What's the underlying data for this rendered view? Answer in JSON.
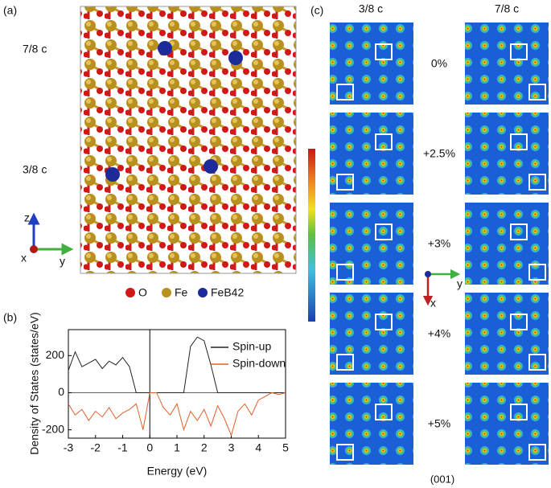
{
  "panel_a": {
    "label": "(a)",
    "layer_labels": [
      "7/8 c",
      "3/8 c"
    ],
    "axes": [
      "z",
      "x",
      "y"
    ],
    "legend": [
      "O",
      "Fe",
      "FeB42"
    ]
  },
  "chart_data": {
    "type": "line",
    "label": "(b)",
    "xlabel": "Energy (eV)",
    "ylabel": "Density of States (states/eV)",
    "x": [
      -3,
      -2.75,
      -2.5,
      -2.25,
      -2,
      -1.75,
      -1.5,
      -1.25,
      -1,
      -0.75,
      -0.5,
      -0.25,
      0,
      0.25,
      0.5,
      0.75,
      1,
      1.25,
      1.5,
      1.75,
      2,
      2.25,
      2.5,
      2.75,
      3,
      3.25,
      3.5,
      3.75,
      4,
      4.25,
      4.5,
      4.75,
      5
    ],
    "series": [
      {
        "name": "Spin-up",
        "color": "#222222",
        "values": [
          120,
          220,
          140,
          160,
          180,
          130,
          170,
          150,
          190,
          140,
          0,
          0,
          0,
          0,
          0,
          0,
          0,
          0,
          250,
          300,
          280,
          150,
          0,
          0,
          0,
          0,
          0,
          0,
          0,
          0,
          0,
          0,
          0
        ]
      },
      {
        "name": "Spin-down",
        "color": "#e0602a",
        "values": [
          -60,
          -120,
          -90,
          -150,
          -100,
          -130,
          -80,
          -140,
          -110,
          -90,
          -60,
          -200,
          0,
          0,
          -80,
          -120,
          -60,
          -200,
          -100,
          -150,
          -90,
          -180,
          -70,
          -140,
          -230,
          -100,
          -60,
          -120,
          -40,
          -20,
          0,
          -10,
          0
        ]
      }
    ],
    "xlim": [
      -3,
      5
    ],
    "ylim": [
      -245,
      340
    ],
    "xticks": [
      -3,
      -2,
      -1,
      0,
      1,
      2,
      3,
      4,
      5
    ],
    "yticks": [
      -200,
      0,
      200
    ],
    "vline": 0,
    "legend": "upper right"
  },
  "panel_c": {
    "label": "(c)",
    "columns": [
      "3/8 c",
      "7/8 c"
    ],
    "strains": [
      "0%",
      "+2.5%",
      "+3%",
      "+4%",
      "+5%"
    ],
    "axes": [
      "y",
      "x"
    ],
    "plane": "(001)"
  }
}
